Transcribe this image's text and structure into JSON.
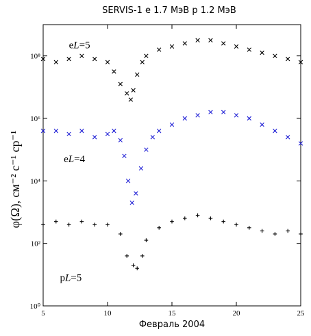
{
  "chart_data": {
    "type": "scatter",
    "title": "SERVIS-1  e 1.7 МэВ р 1.2 МэВ",
    "xlabel": "Февраль 2004",
    "ylabel": "φ(Ω), см⁻² с⁻¹ ср⁻¹",
    "xlim": [
      5,
      25
    ],
    "ylim_log10": [
      0,
      9
    ],
    "y_scale": "log",
    "x_ticks": [
      {
        "value": 5,
        "label": "5"
      },
      {
        "value": 10,
        "label": "10"
      },
      {
        "value": 15,
        "label": "15"
      },
      {
        "value": 20,
        "label": "20"
      },
      {
        "value": 25,
        "label": "25"
      }
    ],
    "y_ticks": [
      {
        "exp": 0,
        "label": "10⁰"
      },
      {
        "exp": 2,
        "label": "10²"
      },
      {
        "exp": 4,
        "label": "10⁴"
      },
      {
        "exp": 6,
        "label": "10⁶"
      },
      {
        "exp": 8,
        "label": "10⁸"
      }
    ],
    "annotations": [
      {
        "text_pre": "e",
        "text_italic": "L",
        "text_post": "=5",
        "x": 7.0,
        "y_log10": 8.25
      },
      {
        "text_pre": "e",
        "text_italic": "L",
        "text_post": "=4",
        "x": 6.6,
        "y_log10": 4.6
      },
      {
        "text_pre": "p",
        "text_italic": "L",
        "text_post": "=5",
        "x": 6.3,
        "y_log10": 0.8
      }
    ],
    "series": [
      {
        "marker": "x",
        "color": "#000000",
        "x": [
          5,
          6,
          7,
          8,
          9,
          10,
          10.5,
          11,
          11.5,
          11.8,
          12,
          12.3,
          12.7,
          13,
          14,
          15,
          16,
          17,
          18,
          19,
          20,
          21,
          22,
          23,
          24,
          25
        ],
        "y_log10": [
          7.9,
          7.8,
          7.9,
          8.0,
          7.9,
          7.8,
          7.5,
          7.1,
          6.8,
          6.6,
          6.9,
          7.4,
          7.8,
          8.0,
          8.2,
          8.3,
          8.4,
          8.5,
          8.5,
          8.4,
          8.3,
          8.2,
          8.1,
          8.0,
          7.9,
          7.8
        ]
      },
      {
        "marker": "x",
        "color": "#2323d6",
        "x": [
          5,
          6,
          7,
          8,
          9,
          10,
          10.5,
          11,
          11.3,
          11.6,
          11.9,
          12.2,
          12.6,
          13,
          13.5,
          14,
          15,
          16,
          17,
          18,
          19,
          20,
          21,
          22,
          23,
          24,
          25
        ],
        "y_log10": [
          5.6,
          5.6,
          5.5,
          5.6,
          5.4,
          5.5,
          5.6,
          5.3,
          4.8,
          4.0,
          3.3,
          3.6,
          4.4,
          5.0,
          5.4,
          5.6,
          5.8,
          6.0,
          6.1,
          6.2,
          6.2,
          6.1,
          6.0,
          5.8,
          5.6,
          5.4,
          5.2
        ]
      },
      {
        "marker": "+",
        "color": "#000000",
        "x": [
          5,
          6,
          7,
          8,
          9,
          10,
          11,
          11.5,
          12,
          12.3,
          12.7,
          13,
          14,
          15,
          16,
          17,
          18,
          19,
          20,
          21,
          22,
          23,
          24,
          25
        ],
        "y_log10": [
          2.6,
          2.7,
          2.6,
          2.7,
          2.6,
          2.6,
          2.3,
          1.6,
          1.3,
          1.2,
          1.6,
          2.1,
          2.5,
          2.7,
          2.8,
          2.9,
          2.8,
          2.7,
          2.6,
          2.5,
          2.4,
          2.3,
          2.4,
          2.3
        ]
      }
    ]
  }
}
